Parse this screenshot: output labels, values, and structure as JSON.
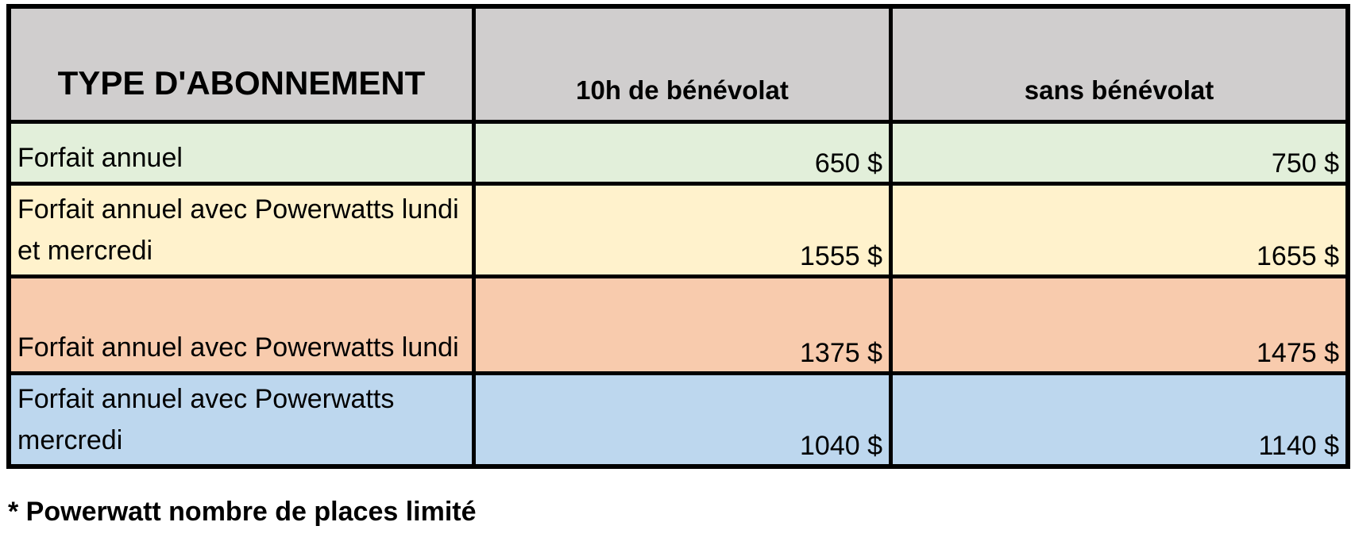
{
  "colors": {
    "border": "#000000",
    "header_bg": "#d0cece",
    "text": "#000000",
    "page_bg": "#ffffff"
  },
  "table": {
    "header": {
      "type_label": "TYPE D'ABONNEMENT",
      "volunteer_label": "10h de bénévolat",
      "no_volunteer_label": "sans bénévolat"
    },
    "rows": [
      {
        "label_lines": [
          "Forfait annuel"
        ],
        "volunteer_price": "650 $",
        "no_volunteer_price": "750 $",
        "bg_color": "#e2efda"
      },
      {
        "label_lines": [
          "Forfait annuel avec Powerwatts lundi",
          "et mercredi"
        ],
        "volunteer_price": "1555 $",
        "no_volunteer_price": "1655 $",
        "bg_color": "#fff2cc"
      },
      {
        "label_lines": [
          "Forfait annuel avec Powerwatts lundi"
        ],
        "volunteer_price": "1375 $",
        "no_volunteer_price": "1475 $",
        "bg_color": "#f8cbad"
      },
      {
        "label_lines": [
          "Forfait annuel avec Powerwatts",
          "mercredi"
        ],
        "volunteer_price": "1040 $",
        "no_volunteer_price": "1140 $",
        "bg_color": "#bdd7ee"
      }
    ]
  },
  "footnote": "* Powerwatt nombre de places limité"
}
